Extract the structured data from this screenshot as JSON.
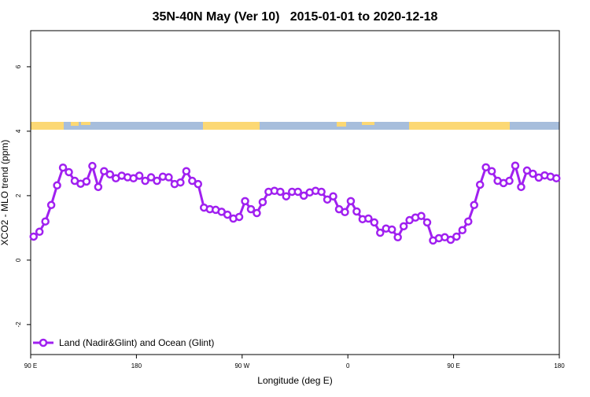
{
  "chart_data": {
    "type": "line",
    "title": "35N-40N May (Ver 10)   2015-01-01 to 2020-12-18",
    "x_label": "Longitude (deg E)",
    "y_label": "XCO2 - MLO trend (ppm)",
    "x": [
      92.5,
      97.5,
      102.5,
      107.5,
      112.5,
      117.5,
      122.5,
      127.5,
      132.5,
      137.5,
      142.5,
      147.5,
      152.5,
      157.5,
      162.5,
      167.5,
      172.5,
      177.5,
      182.5,
      187.5,
      192.5,
      197.5,
      202.5,
      207.5,
      212.5,
      217.5,
      222.5,
      227.5,
      232.5,
      237.5,
      242.5,
      247.5,
      252.5,
      257.5,
      262.5,
      267.5,
      272.5,
      277.5,
      282.5,
      287.5,
      292.5,
      297.5,
      302.5,
      307.5,
      312.5,
      317.5,
      322.5,
      327.5,
      332.5,
      337.5,
      342.5,
      347.5,
      352.5,
      357.5,
      362.5,
      367.5,
      372.5,
      377.5,
      382.5,
      387.5,
      392.5,
      397.5,
      402.5,
      407.5,
      412.5,
      417.5,
      422.5,
      427.5,
      432.5,
      437.5,
      442.5,
      447.5,
      452.5,
      457.5,
      462.5,
      467.5,
      472.5,
      477.5,
      482.5,
      487.5,
      492.5,
      497.5,
      502.5,
      507.5,
      512.5,
      517.5,
      522.5,
      527.5,
      532.5,
      537.5
    ],
    "series": [
      {
        "name": "Land (Nadir&Glint) and Ocean (Glint)",
        "color": "#a020f0",
        "values": [
          0.73,
          0.88,
          1.2,
          1.71,
          2.32,
          2.87,
          2.73,
          2.46,
          2.37,
          2.44,
          2.92,
          2.27,
          2.76,
          2.66,
          2.54,
          2.62,
          2.57,
          2.54,
          2.62,
          2.46,
          2.57,
          2.46,
          2.59,
          2.57,
          2.36,
          2.41,
          2.76,
          2.46,
          2.36,
          1.63,
          1.58,
          1.56,
          1.5,
          1.41,
          1.29,
          1.34,
          1.83,
          1.58,
          1.46,
          1.8,
          2.12,
          2.15,
          2.12,
          1.98,
          2.12,
          2.12,
          2.0,
          2.1,
          2.15,
          2.12,
          1.88,
          1.98,
          1.58,
          1.49,
          1.83,
          1.51,
          1.27,
          1.29,
          1.17,
          0.85,
          0.98,
          0.95,
          0.71,
          1.05,
          1.24,
          1.32,
          1.37,
          1.17,
          0.61,
          0.68,
          0.71,
          0.63,
          0.73,
          0.93,
          1.2,
          1.71,
          2.34,
          2.88,
          2.76,
          2.46,
          2.39,
          2.46,
          2.93,
          2.27,
          2.78,
          2.68,
          2.56,
          2.63,
          2.59,
          2.54
        ]
      }
    ],
    "xlim": [
      90,
      540
    ],
    "xticks": [
      {
        "value": 90,
        "label": "90 E"
      },
      {
        "value": 180,
        "label": "180"
      },
      {
        "value": 270,
        "label": "90 W"
      },
      {
        "value": 360,
        "label": "0"
      },
      {
        "value": 450,
        "label": "90 E"
      },
      {
        "value": 540,
        "label": "180"
      }
    ],
    "ylim": [
      -2.93,
      7.12
    ],
    "yticks": [
      -2,
      0,
      2,
      4,
      6
    ],
    "legend": "bottom-left"
  }
}
